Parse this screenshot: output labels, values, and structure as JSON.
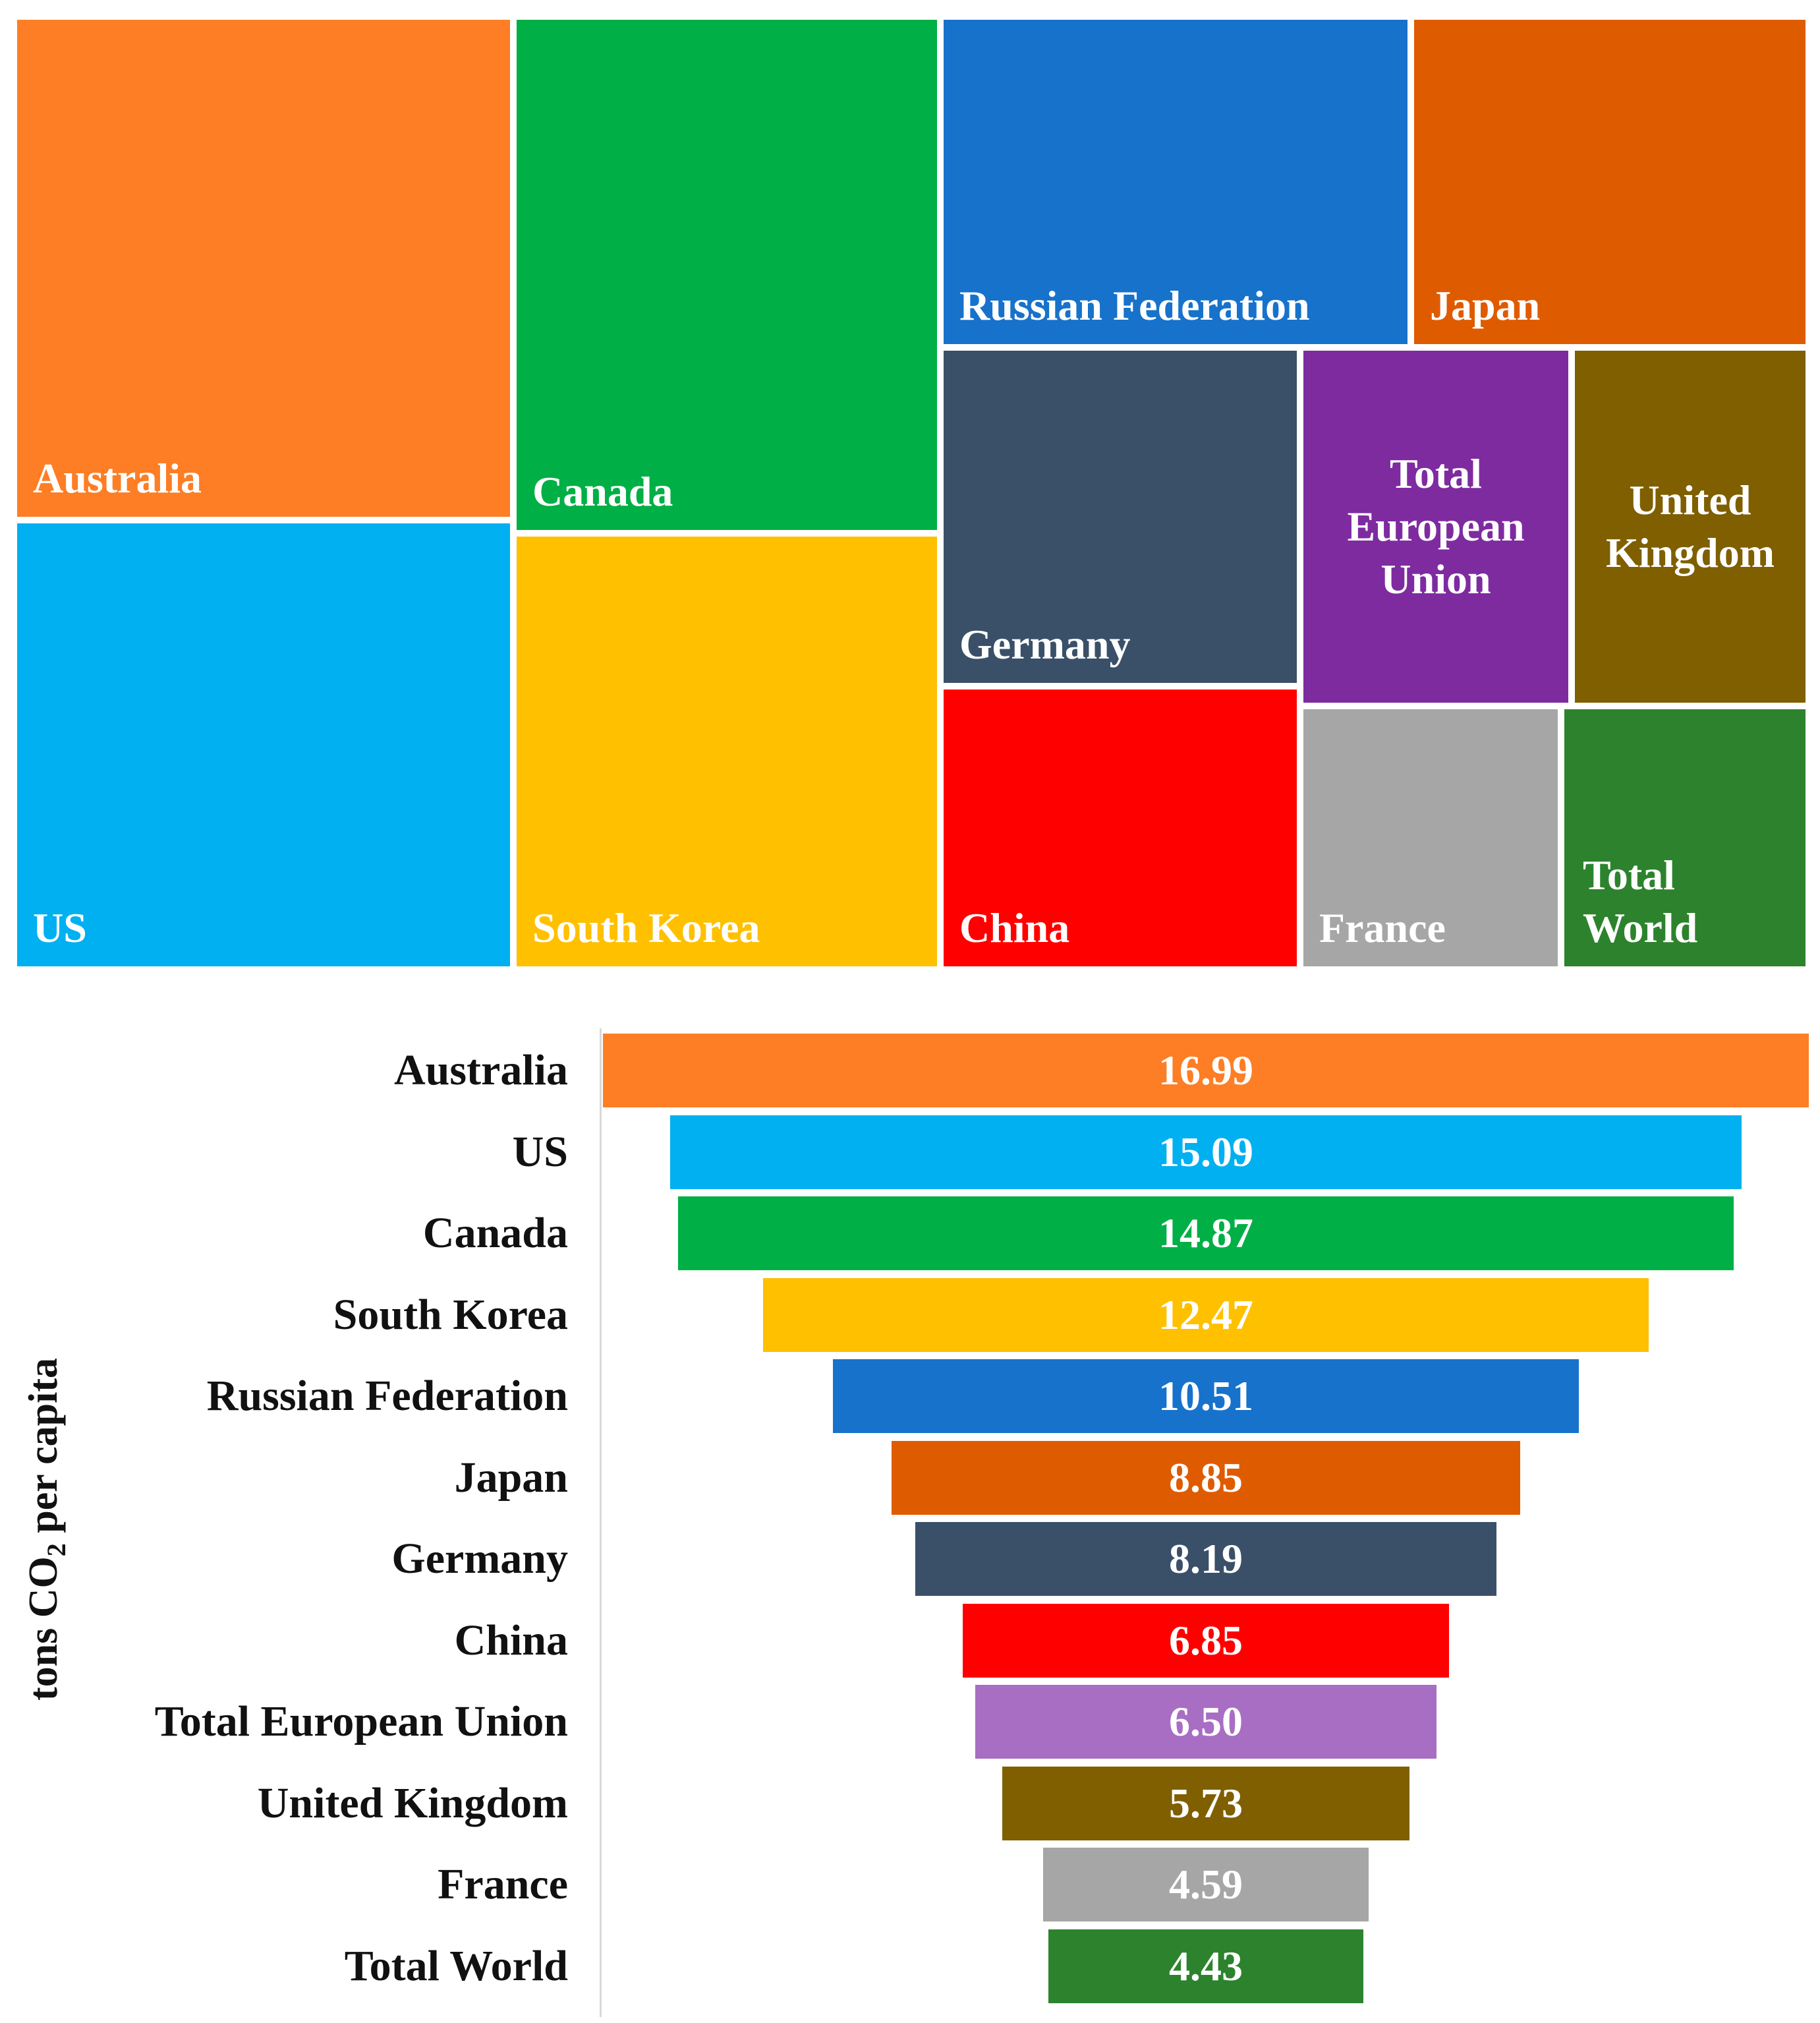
{
  "chart_data": [
    {
      "type": "treemap",
      "labels": [
        "Australia",
        "US",
        "Canada",
        "South Korea",
        "Russian Federation",
        "Japan",
        "Germany",
        "China",
        "Total European Union",
        "United Kingdom",
        "France",
        "Total World"
      ],
      "values": [
        16.99,
        15.09,
        14.87,
        12.47,
        10.51,
        8.85,
        8.19,
        6.85,
        6.5,
        5.73,
        4.59,
        4.43
      ],
      "colors": [
        "#FD7E25",
        "#00B0F0",
        "#00AF45",
        "#FFC000",
        "#1772CB",
        "#DF5B00",
        "#3A5068",
        "#FF0000",
        "#7E2BA0",
        "#7F5F00",
        "#A6A6A6",
        "#2D832D"
      ]
    },
    {
      "type": "bar",
      "orientation": "horizontal",
      "style": "funnel",
      "categories": [
        "Australia",
        "US",
        "Canada",
        "South Korea",
        "Russian Federation",
        "Japan",
        "Germany",
        "China",
        "Total European Union",
        "United Kingdom",
        "France",
        "Total World"
      ],
      "values": [
        16.99,
        15.09,
        14.87,
        12.47,
        10.51,
        8.85,
        8.19,
        6.85,
        6.5,
        5.73,
        4.59,
        4.43
      ],
      "value_labels": [
        "16.99",
        "15.09",
        "14.87",
        "12.47",
        "10.51",
        "8.85",
        "8.19",
        "6.85",
        "6.50",
        "5.73",
        "4.59",
        "4.43"
      ],
      "colors": [
        "#FD7E25",
        "#00B0F0",
        "#00AF45",
        "#FFC000",
        "#1772CB",
        "#DF5B00",
        "#3A5068",
        "#FF0000",
        "#A86EC3",
        "#7F5F00",
        "#A6A6A6",
        "#2D832D"
      ],
      "ylabel_main": "tons CO",
      "ylabel_sub": "2",
      "ylabel_tail": " per capita",
      "xlim": [
        0,
        16.99
      ]
    }
  ]
}
